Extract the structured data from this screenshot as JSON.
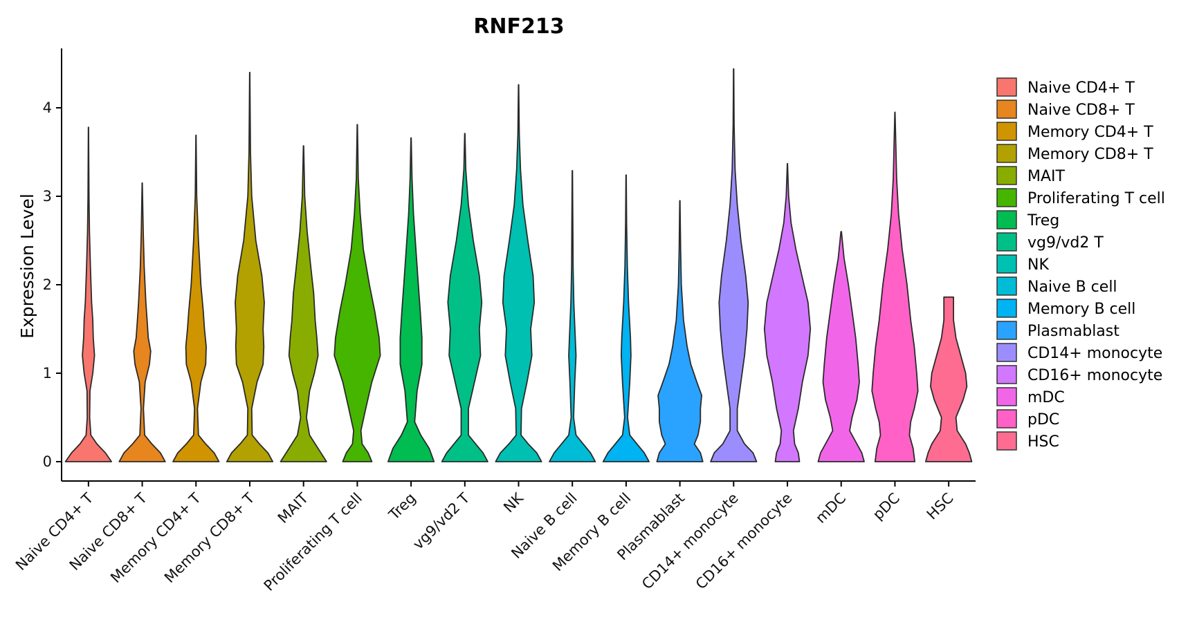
{
  "chart_data": {
    "type": "violin",
    "title": "RNF213",
    "xlabel": "",
    "ylabel": "Expression Level",
    "ylim": [
      -0.3,
      4.7
    ],
    "yticks": [
      0,
      1,
      2,
      3,
      4
    ],
    "grid": false,
    "legend": "right",
    "categories": [
      "Naive CD4+ T",
      "Naive CD8+ T",
      "Memory CD4+ T",
      "Memory CD8+ T",
      "MAIT",
      "Proliferating T cell",
      "Treg",
      "vg9/vd2 T",
      "NK",
      "Naive B cell",
      "Memory B cell",
      "Plasmablast",
      "CD14+ monocyte",
      "CD16+ monocyte",
      "mDC",
      "pDC",
      "HSC"
    ],
    "colors": [
      "#F8766D",
      "#E7851E",
      "#D09400",
      "#B2A100",
      "#89AC00",
      "#45B500",
      "#00BC51",
      "#00C087",
      "#00C0B2",
      "#00BCD6",
      "#00B3F2",
      "#29A3FF",
      "#9C8DFF",
      "#D277FF",
      "#F166E8",
      "#FF61C7",
      "#FF6C91"
    ],
    "series": [
      {
        "name": "Naive CD4+ T",
        "max": 3.78,
        "width_profile": [
          [
            0,
            0.95
          ],
          [
            0.1,
            0.7
          ],
          [
            0.2,
            0.35
          ],
          [
            0.3,
            0.1
          ],
          [
            0.5,
            0.05
          ],
          [
            0.8,
            0.06
          ],
          [
            1.0,
            0.18
          ],
          [
            1.2,
            0.25
          ],
          [
            1.4,
            0.2
          ],
          [
            1.6,
            0.18
          ],
          [
            1.8,
            0.13
          ],
          [
            2.2,
            0.08
          ],
          [
            2.6,
            0.04
          ],
          [
            3.0,
            0.02
          ],
          [
            3.78,
            0.005
          ]
        ]
      },
      {
        "name": "Naive CD8+ T",
        "max": 3.15,
        "width_profile": [
          [
            0,
            0.95
          ],
          [
            0.1,
            0.75
          ],
          [
            0.2,
            0.4
          ],
          [
            0.3,
            0.1
          ],
          [
            0.6,
            0.05
          ],
          [
            0.9,
            0.12
          ],
          [
            1.1,
            0.3
          ],
          [
            1.25,
            0.35
          ],
          [
            1.4,
            0.25
          ],
          [
            1.6,
            0.2
          ],
          [
            1.8,
            0.15
          ],
          [
            2.2,
            0.08
          ],
          [
            2.6,
            0.04
          ],
          [
            3.15,
            0.005
          ]
        ]
      },
      {
        "name": "Memory CD4+ T",
        "max": 3.69,
        "width_profile": [
          [
            0,
            0.95
          ],
          [
            0.1,
            0.75
          ],
          [
            0.2,
            0.4
          ],
          [
            0.3,
            0.1
          ],
          [
            0.6,
            0.06
          ],
          [
            0.9,
            0.2
          ],
          [
            1.1,
            0.4
          ],
          [
            1.3,
            0.42
          ],
          [
            1.5,
            0.35
          ],
          [
            1.7,
            0.3
          ],
          [
            2.0,
            0.2
          ],
          [
            2.5,
            0.1
          ],
          [
            3.0,
            0.03
          ],
          [
            3.69,
            0.005
          ]
        ]
      },
      {
        "name": "Memory CD8+ T",
        "max": 4.4,
        "width_profile": [
          [
            0,
            0.95
          ],
          [
            0.1,
            0.75
          ],
          [
            0.2,
            0.4
          ],
          [
            0.3,
            0.1
          ],
          [
            0.6,
            0.08
          ],
          [
            0.9,
            0.3
          ],
          [
            1.1,
            0.55
          ],
          [
            1.3,
            0.58
          ],
          [
            1.5,
            0.55
          ],
          [
            1.8,
            0.6
          ],
          [
            2.1,
            0.5
          ],
          [
            2.5,
            0.25
          ],
          [
            3.0,
            0.08
          ],
          [
            3.5,
            0.03
          ],
          [
            4.4,
            0.005
          ]
        ]
      },
      {
        "name": "MAIT",
        "max": 3.57,
        "width_profile": [
          [
            0,
            0.95
          ],
          [
            0.15,
            0.6
          ],
          [
            0.3,
            0.25
          ],
          [
            0.5,
            0.12
          ],
          [
            0.8,
            0.25
          ],
          [
            1.0,
            0.45
          ],
          [
            1.2,
            0.6
          ],
          [
            1.4,
            0.55
          ],
          [
            1.6,
            0.48
          ],
          [
            1.9,
            0.42
          ],
          [
            2.2,
            0.3
          ],
          [
            2.6,
            0.15
          ],
          [
            3.0,
            0.05
          ],
          [
            3.57,
            0.005
          ]
        ]
      },
      {
        "name": "Proliferating T cell",
        "max": 3.81,
        "width_profile": [
          [
            0,
            0.6
          ],
          [
            0.1,
            0.45
          ],
          [
            0.2,
            0.2
          ],
          [
            0.35,
            0.15
          ],
          [
            0.6,
            0.35
          ],
          [
            0.9,
            0.6
          ],
          [
            1.2,
            0.95
          ],
          [
            1.4,
            0.9
          ],
          [
            1.7,
            0.72
          ],
          [
            2.0,
            0.5
          ],
          [
            2.4,
            0.25
          ],
          [
            2.8,
            0.12
          ],
          [
            3.2,
            0.04
          ],
          [
            3.81,
            0.005
          ]
        ]
      },
      {
        "name": "Treg",
        "max": 3.66,
        "width_profile": [
          [
            0,
            0.95
          ],
          [
            0.15,
            0.75
          ],
          [
            0.3,
            0.4
          ],
          [
            0.45,
            0.15
          ],
          [
            0.8,
            0.25
          ],
          [
            1.1,
            0.45
          ],
          [
            1.4,
            0.45
          ],
          [
            1.7,
            0.38
          ],
          [
            2.0,
            0.3
          ],
          [
            2.4,
            0.2
          ],
          [
            2.8,
            0.1
          ],
          [
            3.2,
            0.04
          ],
          [
            3.66,
            0.005
          ]
        ]
      },
      {
        "name": "vg9/vd2 T",
        "max": 3.71,
        "width_profile": [
          [
            0,
            0.95
          ],
          [
            0.1,
            0.75
          ],
          [
            0.2,
            0.45
          ],
          [
            0.3,
            0.15
          ],
          [
            0.6,
            0.15
          ],
          [
            0.9,
            0.4
          ],
          [
            1.2,
            0.65
          ],
          [
            1.5,
            0.6
          ],
          [
            1.8,
            0.7
          ],
          [
            2.1,
            0.6
          ],
          [
            2.5,
            0.35
          ],
          [
            2.9,
            0.15
          ],
          [
            3.3,
            0.04
          ],
          [
            3.71,
            0.005
          ]
        ]
      },
      {
        "name": "NK",
        "max": 4.26,
        "width_profile": [
          [
            0,
            0.95
          ],
          [
            0.1,
            0.75
          ],
          [
            0.2,
            0.4
          ],
          [
            0.3,
            0.1
          ],
          [
            0.6,
            0.12
          ],
          [
            0.9,
            0.35
          ],
          [
            1.2,
            0.55
          ],
          [
            1.5,
            0.5
          ],
          [
            1.8,
            0.65
          ],
          [
            2.1,
            0.6
          ],
          [
            2.5,
            0.38
          ],
          [
            2.9,
            0.18
          ],
          [
            3.3,
            0.08
          ],
          [
            3.7,
            0.03
          ],
          [
            4.26,
            0.005
          ]
        ]
      },
      {
        "name": "Naive B cell",
        "max": 3.29,
        "width_profile": [
          [
            0,
            0.95
          ],
          [
            0.1,
            0.75
          ],
          [
            0.2,
            0.45
          ],
          [
            0.3,
            0.15
          ],
          [
            0.5,
            0.05
          ],
          [
            0.9,
            0.1
          ],
          [
            1.2,
            0.15
          ],
          [
            1.4,
            0.12
          ],
          [
            1.8,
            0.06
          ],
          [
            2.2,
            0.03
          ],
          [
            2.7,
            0.02
          ],
          [
            3.29,
            0.005
          ]
        ]
      },
      {
        "name": "Memory B cell",
        "max": 3.24,
        "width_profile": [
          [
            0,
            0.95
          ],
          [
            0.1,
            0.75
          ],
          [
            0.2,
            0.45
          ],
          [
            0.3,
            0.15
          ],
          [
            0.5,
            0.06
          ],
          [
            0.9,
            0.15
          ],
          [
            1.2,
            0.2
          ],
          [
            1.4,
            0.18
          ],
          [
            1.8,
            0.1
          ],
          [
            2.2,
            0.05
          ],
          [
            2.7,
            0.02
          ],
          [
            3.24,
            0.005
          ]
        ]
      },
      {
        "name": "Plasmablast",
        "max": 2.95,
        "width_profile": [
          [
            0,
            0.95
          ],
          [
            0.1,
            0.85
          ],
          [
            0.2,
            0.6
          ],
          [
            0.3,
            0.75
          ],
          [
            0.45,
            0.85
          ],
          [
            0.6,
            0.85
          ],
          [
            0.75,
            0.9
          ],
          [
            0.9,
            0.7
          ],
          [
            1.1,
            0.45
          ],
          [
            1.3,
            0.3
          ],
          [
            1.6,
            0.15
          ],
          [
            2.0,
            0.06
          ],
          [
            2.4,
            0.03
          ],
          [
            2.95,
            0.005
          ]
        ]
      },
      {
        "name": "CD14+ monocyte",
        "max": 4.44,
        "width_profile": [
          [
            0,
            0.95
          ],
          [
            0.1,
            0.8
          ],
          [
            0.2,
            0.45
          ],
          [
            0.35,
            0.15
          ],
          [
            0.6,
            0.15
          ],
          [
            0.9,
            0.3
          ],
          [
            1.2,
            0.45
          ],
          [
            1.5,
            0.55
          ],
          [
            1.8,
            0.6
          ],
          [
            2.1,
            0.5
          ],
          [
            2.5,
            0.3
          ],
          [
            2.9,
            0.15
          ],
          [
            3.3,
            0.06
          ],
          [
            3.8,
            0.02
          ],
          [
            4.44,
            0.005
          ]
        ]
      },
      {
        "name": "CD16+ monocyte",
        "max": 3.37,
        "width_profile": [
          [
            0,
            0.5
          ],
          [
            0.1,
            0.45
          ],
          [
            0.2,
            0.3
          ],
          [
            0.35,
            0.25
          ],
          [
            0.6,
            0.45
          ],
          [
            0.9,
            0.62
          ],
          [
            1.2,
            0.85
          ],
          [
            1.5,
            0.95
          ],
          [
            1.8,
            0.85
          ],
          [
            2.1,
            0.6
          ],
          [
            2.4,
            0.35
          ],
          [
            2.7,
            0.15
          ],
          [
            3.0,
            0.05
          ],
          [
            3.37,
            0.005
          ]
        ]
      },
      {
        "name": "mDC",
        "max": 2.6,
        "width_profile": [
          [
            0,
            0.95
          ],
          [
            0.1,
            0.85
          ],
          [
            0.25,
            0.55
          ],
          [
            0.35,
            0.35
          ],
          [
            0.5,
            0.45
          ],
          [
            0.7,
            0.65
          ],
          [
            0.9,
            0.75
          ],
          [
            1.1,
            0.7
          ],
          [
            1.4,
            0.6
          ],
          [
            1.7,
            0.45
          ],
          [
            2.0,
            0.3
          ],
          [
            2.3,
            0.12
          ],
          [
            2.6,
            0.01
          ]
        ]
      },
      {
        "name": "pDC",
        "max": 3.95,
        "width_profile": [
          [
            0,
            0.82
          ],
          [
            0.15,
            0.75
          ],
          [
            0.3,
            0.6
          ],
          [
            0.45,
            0.65
          ],
          [
            0.6,
            0.8
          ],
          [
            0.8,
            0.95
          ],
          [
            1.0,
            0.9
          ],
          [
            1.3,
            0.8
          ],
          [
            1.6,
            0.65
          ],
          [
            2.0,
            0.5
          ],
          [
            2.4,
            0.3
          ],
          [
            2.8,
            0.15
          ],
          [
            3.2,
            0.07
          ],
          [
            3.95,
            0.005
          ]
        ]
      },
      {
        "name": "HSC",
        "max": 1.86,
        "width_profile": [
          [
            0,
            0.95
          ],
          [
            0.1,
            0.85
          ],
          [
            0.2,
            0.7
          ],
          [
            0.35,
            0.35
          ],
          [
            0.5,
            0.3
          ],
          [
            0.7,
            0.6
          ],
          [
            0.85,
            0.75
          ],
          [
            1.0,
            0.7
          ],
          [
            1.2,
            0.5
          ],
          [
            1.4,
            0.3
          ],
          [
            1.6,
            0.2
          ],
          [
            1.86,
            0.2
          ]
        ]
      }
    ]
  }
}
